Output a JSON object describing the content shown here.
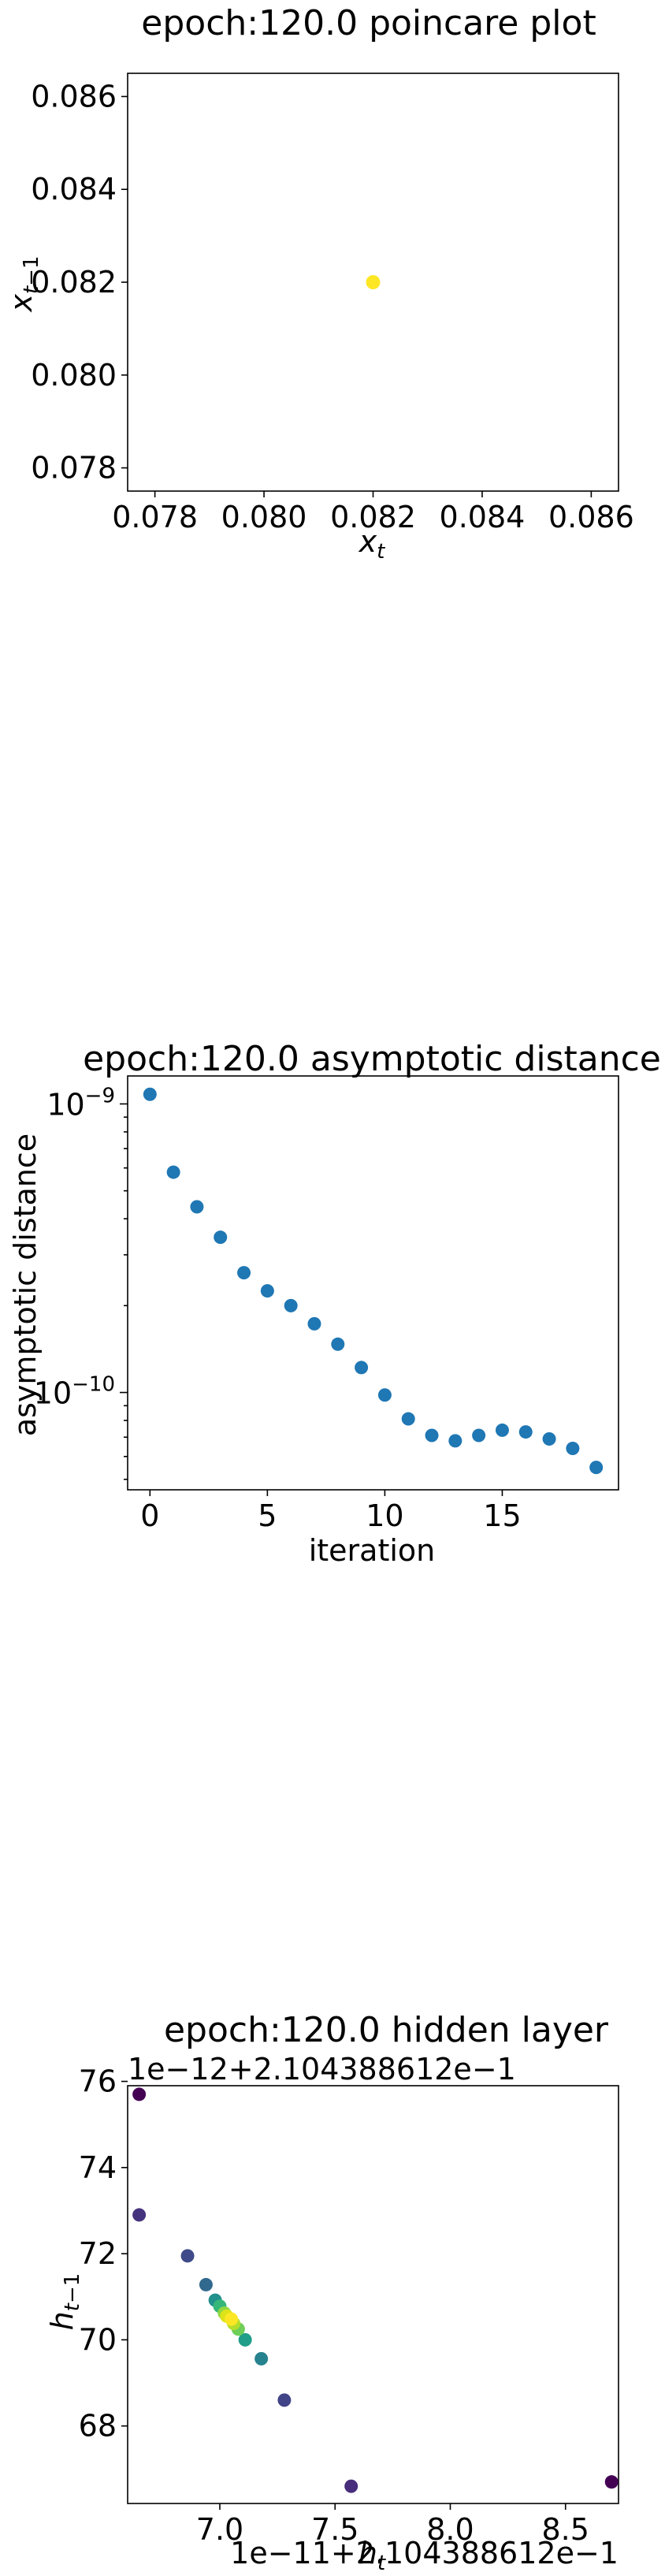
{
  "chart_data": [
    {
      "type": "scatter",
      "title": "epoch:120.0 poincare plot",
      "xlabel": "x_t",
      "ylabel": "x_{t−1}",
      "xlim": [
        0.0775,
        0.0865
      ],
      "ylim": [
        0.0775,
        0.0865
      ],
      "xticks": [
        "0.078",
        "0.080",
        "0.082",
        "0.084",
        "0.086"
      ],
      "yticks": [
        "0.078",
        "0.080",
        "0.082",
        "0.084",
        "0.086"
      ],
      "points": [
        {
          "x": 0.082,
          "y": 0.082,
          "color": "#fde725"
        }
      ]
    },
    {
      "type": "scatter",
      "title": "epoch:120.0 asymptotic distance",
      "xlabel": "iteration",
      "ylabel": "asymptotic distance",
      "yscale": "log",
      "xlim": [
        -0.95,
        19.95
      ],
      "ylim": [
        4.6e-11,
        1.25e-09
      ],
      "xticks": [
        "0",
        "5",
        "10",
        "15"
      ],
      "yticks": [
        "10^{−9}",
        "10^{−10}"
      ],
      "color": "#1f77b4",
      "x": [
        0,
        1,
        2,
        3,
        4,
        5,
        6,
        7,
        8,
        9,
        10,
        11,
        12,
        13,
        14,
        15,
        16,
        17,
        18,
        19
      ],
      "y": [
        1.08e-09,
        5.8e-10,
        4.4e-10,
        3.45e-10,
        2.6e-10,
        2.25e-10,
        2e-10,
        1.73e-10,
        1.47e-10,
        1.22e-10,
        9.8e-11,
        8.1e-11,
        7.1e-11,
        6.8e-11,
        7.1e-11,
        7.4e-11,
        7.3e-11,
        6.9e-11,
        6.4e-11,
        5.5e-11
      ]
    },
    {
      "type": "scatter",
      "title": "epoch:120.0 hidden layer",
      "xlabel": "h_t",
      "ylabel": "h_{t−1}",
      "x_offset_text": "1e−11+2.104388612e−1",
      "y_offset_text": "1e−12+2.104388612e−1",
      "xlim": [
        6.6,
        8.73
      ],
      "ylim": [
        66.2,
        75.9
      ],
      "xticks": [
        "7.0",
        "7.5",
        "8.0",
        "8.5"
      ],
      "yticks": [
        "68",
        "70",
        "72",
        "74",
        "76"
      ],
      "points": [
        {
          "x": 6.65,
          "y": 75.7,
          "color": "#440154"
        },
        {
          "x": 6.65,
          "y": 72.9,
          "color": "#46337e"
        },
        {
          "x": 8.7,
          "y": 66.7,
          "color": "#440154"
        },
        {
          "x": 7.57,
          "y": 66.6,
          "color": "#472d7b"
        },
        {
          "x": 6.86,
          "y": 71.95,
          "color": "#3e4a89"
        },
        {
          "x": 7.28,
          "y": 68.6,
          "color": "#414487"
        },
        {
          "x": 6.94,
          "y": 71.28,
          "color": "#31688e"
        },
        {
          "x": 7.18,
          "y": 69.56,
          "color": "#26828e"
        },
        {
          "x": 6.98,
          "y": 70.92,
          "color": "#21918c"
        },
        {
          "x": 7.11,
          "y": 70.0,
          "color": "#1f9e89"
        },
        {
          "x": 7.0,
          "y": 70.78,
          "color": "#35b779"
        },
        {
          "x": 7.08,
          "y": 70.25,
          "color": "#6ece58"
        },
        {
          "x": 7.02,
          "y": 70.62,
          "color": "#90d743"
        },
        {
          "x": 7.06,
          "y": 70.38,
          "color": "#b5de2b"
        },
        {
          "x": 7.03,
          "y": 70.55,
          "color": "#dde318"
        },
        {
          "x": 7.05,
          "y": 70.48,
          "color": "#fde725"
        }
      ]
    }
  ]
}
